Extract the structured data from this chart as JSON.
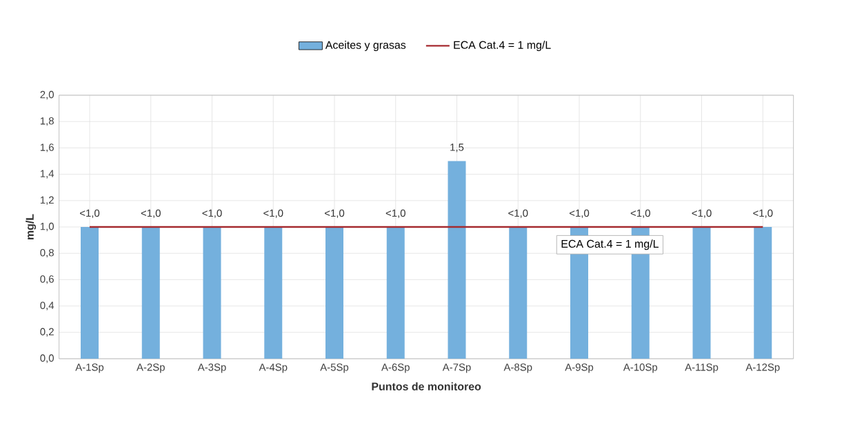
{
  "chart_data": {
    "type": "bar",
    "categories": [
      "A-1Sp",
      "A-2Sp",
      "A-3Sp",
      "A-4Sp",
      "A-5Sp",
      "A-6Sp",
      "A-7Sp",
      "A-8Sp",
      "A-9Sp",
      "A-10Sp",
      "A-11Sp",
      "A-12Sp"
    ],
    "series": [
      {
        "name": "Aceites y grasas",
        "color": "#74b0dd",
        "values": [
          1.0,
          1.0,
          1.0,
          1.0,
          1.0,
          1.0,
          1.5,
          1.0,
          1.0,
          1.0,
          1.0,
          1.0
        ],
        "value_labels": [
          "<1,0",
          "<1,0",
          "<1,0",
          "<1,0",
          "<1,0",
          "<1,0",
          "1,5",
          "<1,0",
          "<1,0",
          "<1,0",
          "<1,0",
          "<1,0"
        ]
      }
    ],
    "xlabel": "Puntos de monitoreo",
    "ylabel": "mg/L",
    "ylim": [
      0,
      2
    ],
    "yticks": [
      {
        "value": 0,
        "label": "0,0"
      },
      {
        "value": 0.2,
        "label": "0,2"
      },
      {
        "value": 0.4,
        "label": "0,4"
      },
      {
        "value": 0.6,
        "label": "0,6"
      },
      {
        "value": 0.8,
        "label": "0,8"
      },
      {
        "value": 1.0,
        "label": "1,0"
      },
      {
        "value": 1.2,
        "label": "1,2"
      },
      {
        "value": 1.4,
        "label": "1,4"
      },
      {
        "value": 1.6,
        "label": "1,6"
      },
      {
        "value": 1.8,
        "label": "1,8"
      },
      {
        "value": 2.0,
        "label": "2,0"
      }
    ],
    "ref_lines": [
      {
        "axis": "y",
        "value": 1,
        "label": "ECA Cat.4 = 1 mg/L",
        "color": "#a52a2f"
      }
    ],
    "grid": true,
    "legend": "top"
  }
}
